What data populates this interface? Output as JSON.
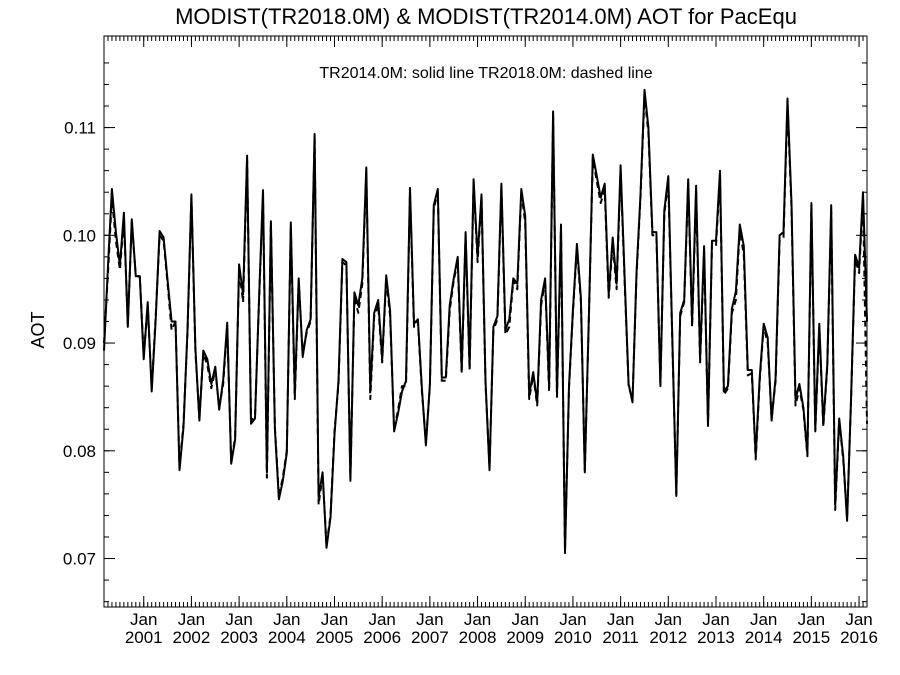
{
  "chart_data": {
    "type": "line",
    "title": "MODIST(TR2018.0M) & MODIST(TR2014.0M)  AOT for PacEqu",
    "annotation": "TR2014.0M: solid line   TR2018.0M: dashed line",
    "ylabel": "AOT",
    "xlabel": "",
    "ylim": [
      0.0655,
      0.1185
    ],
    "xlim": [
      "2000-03",
      "2016-03"
    ],
    "y_ticks": [
      {
        "value": 0.07,
        "label": "0.07"
      },
      {
        "value": 0.08,
        "label": "0.08"
      },
      {
        "value": 0.09,
        "label": "0.09"
      },
      {
        "value": 0.1,
        "label": "0.10"
      },
      {
        "value": 0.11,
        "label": "0.11"
      }
    ],
    "x_ticks": [
      {
        "value": "2001-01",
        "month": "Jan",
        "year": "2001"
      },
      {
        "value": "2002-01",
        "month": "Jan",
        "year": "2002"
      },
      {
        "value": "2003-01",
        "month": "Jan",
        "year": "2003"
      },
      {
        "value": "2004-01",
        "month": "Jan",
        "year": "2004"
      },
      {
        "value": "2005-01",
        "month": "Jan",
        "year": "2005"
      },
      {
        "value": "2006-01",
        "month": "Jan",
        "year": "2006"
      },
      {
        "value": "2007-01",
        "month": "Jan",
        "year": "2007"
      },
      {
        "value": "2008-01",
        "month": "Jan",
        "year": "2008"
      },
      {
        "value": "2009-01",
        "month": "Jan",
        "year": "2009"
      },
      {
        "value": "2010-01",
        "month": "Jan",
        "year": "2010"
      },
      {
        "value": "2011-01",
        "month": "Jan",
        "year": "2011"
      },
      {
        "value": "2012-01",
        "month": "Jan",
        "year": "2012"
      },
      {
        "value": "2013-01",
        "month": "Jan",
        "year": "2013"
      },
      {
        "value": "2014-01",
        "month": "Jan",
        "year": "2014"
      },
      {
        "value": "2015-01",
        "month": "Jan",
        "year": "2015"
      },
      {
        "value": "2016-01",
        "month": "Jan",
        "year": "2016"
      }
    ],
    "grid": false,
    "series": [
      {
        "name": "TR2014.0M",
        "style": "solid",
        "color": "#000000",
        "x": [
          "2000-03",
          "2000-04",
          "2000-05",
          "2000-06",
          "2000-07",
          "2000-08",
          "2000-09",
          "2000-10",
          "2000-11",
          "2000-12",
          "2001-01",
          "2001-02",
          "2001-03",
          "2001-04",
          "2001-05",
          "2001-06",
          "2001-07",
          "2001-08",
          "2001-09",
          "2001-10",
          "2001-11",
          "2001-12",
          "2002-01",
          "2002-02",
          "2002-03",
          "2002-04",
          "2002-05",
          "2002-06",
          "2002-07",
          "2002-08",
          "2002-09",
          "2002-10",
          "2002-11",
          "2002-12",
          "2003-01",
          "2003-02",
          "2003-03",
          "2003-04",
          "2003-05",
          "2003-06",
          "2003-07",
          "2003-08",
          "2003-09",
          "2003-10",
          "2003-11",
          "2003-12",
          "2004-01",
          "2004-02",
          "2004-03",
          "2004-04",
          "2004-05",
          "2004-06",
          "2004-07",
          "2004-08",
          "2004-09",
          "2004-10",
          "2004-11",
          "2004-12",
          "2005-01",
          "2005-02",
          "2005-03",
          "2005-04",
          "2005-05",
          "2005-06",
          "2005-07",
          "2005-08",
          "2005-09",
          "2005-10",
          "2005-11",
          "2005-12",
          "2006-01",
          "2006-02",
          "2006-03",
          "2006-04",
          "2006-05",
          "2006-06",
          "2006-07",
          "2006-08",
          "2006-09",
          "2006-10",
          "2006-11",
          "2006-12",
          "2007-01",
          "2007-02",
          "2007-03",
          "2007-04",
          "2007-05",
          "2007-06",
          "2007-07",
          "2007-08",
          "2007-09",
          "2007-10",
          "2007-11",
          "2007-12",
          "2008-01",
          "2008-02",
          "2008-03",
          "2008-04",
          "2008-05",
          "2008-06",
          "2008-07",
          "2008-08",
          "2008-09",
          "2008-10",
          "2008-11",
          "2008-12",
          "2009-01",
          "2009-02",
          "2009-03",
          "2009-04",
          "2009-05",
          "2009-06",
          "2009-07",
          "2009-08",
          "2009-09",
          "2009-10",
          "2009-11",
          "2009-12",
          "2010-01",
          "2010-02",
          "2010-03",
          "2010-04",
          "2010-05",
          "2010-06",
          "2010-07",
          "2010-08",
          "2010-09",
          "2010-10",
          "2010-11",
          "2010-12",
          "2011-01",
          "2011-02",
          "2011-03",
          "2011-04",
          "2011-05",
          "2011-06",
          "2011-07",
          "2011-08",
          "2011-09",
          "2011-10",
          "2011-11",
          "2011-12",
          "2012-01",
          "2012-02",
          "2012-03",
          "2012-04",
          "2012-05",
          "2012-06",
          "2012-07",
          "2012-08",
          "2012-09",
          "2012-10",
          "2012-11",
          "2012-12",
          "2013-01",
          "2013-02",
          "2013-03",
          "2013-04",
          "2013-05",
          "2013-06",
          "2013-07",
          "2013-08",
          "2013-09",
          "2013-10",
          "2013-11",
          "2013-12",
          "2014-01",
          "2014-02",
          "2014-03",
          "2014-04",
          "2014-05",
          "2014-06",
          "2014-07",
          "2014-08",
          "2014-09",
          "2014-10",
          "2014-11",
          "2014-12",
          "2015-01",
          "2015-02",
          "2015-03",
          "2015-04",
          "2015-05",
          "2015-06",
          "2015-07",
          "2015-08",
          "2015-09",
          "2015-10",
          "2015-11",
          "2015-12",
          "2016-01",
          "2016-02",
          "2016-03"
        ],
        "values": [
          0.0893,
          0.0972,
          0.1043,
          0.1003,
          0.0972,
          0.1021,
          0.0915,
          0.1015,
          0.0962,
          0.0962,
          0.0885,
          0.0938,
          0.0855,
          0.0922,
          0.1004,
          0.0998,
          0.0958,
          0.092,
          0.092,
          0.0782,
          0.0822,
          0.0912,
          0.1038,
          0.0895,
          0.0828,
          0.0893,
          0.0885,
          0.0862,
          0.0878,
          0.0838,
          0.0866,
          0.0919,
          0.0788,
          0.081,
          0.0973,
          0.0945,
          0.1074,
          0.0825,
          0.083,
          0.094,
          0.1042,
          0.078,
          0.1013,
          0.082,
          0.0755,
          0.0772,
          0.0798,
          0.1012,
          0.0852,
          0.096,
          0.0887,
          0.0912,
          0.0922,
          0.1094,
          0.0757,
          0.078,
          0.071,
          0.0738,
          0.0815,
          0.0865,
          0.0978,
          0.0975,
          0.0772,
          0.0947,
          0.0935,
          0.096,
          0.1063,
          0.0855,
          0.0928,
          0.094,
          0.0885,
          0.0963,
          0.093,
          0.0818,
          0.0835,
          0.0855,
          0.0865,
          0.1044,
          0.0918,
          0.0922,
          0.0858,
          0.0805,
          0.0862,
          0.1028,
          0.1043,
          0.0868,
          0.0868,
          0.0935,
          0.096,
          0.098,
          0.0875,
          0.1003,
          0.0878,
          0.1052,
          0.098,
          0.1038,
          0.0865,
          0.0782,
          0.0915,
          0.0925,
          0.1048,
          0.0912,
          0.0922,
          0.096,
          0.0955,
          0.1043,
          0.1018,
          0.0852,
          0.0873,
          0.0845,
          0.094,
          0.096,
          0.086,
          0.1115,
          0.0852,
          0.101,
          0.0705,
          0.086,
          0.093,
          0.0992,
          0.0942,
          0.078,
          0.0922,
          0.1075,
          0.1055,
          0.1035,
          0.1048,
          0.0945,
          0.0998,
          0.0955,
          0.1065,
          0.0962,
          0.0862,
          0.0845,
          0.0965,
          0.1038,
          0.1135,
          0.11,
          0.1003,
          0.1003,
          0.086,
          0.1023,
          0.1055,
          0.0905,
          0.0758,
          0.0928,
          0.094,
          0.1052,
          0.0918,
          0.1046,
          0.0885,
          0.099,
          0.0823,
          0.0995,
          0.0995,
          0.106,
          0.0855,
          0.086,
          0.0932,
          0.0948,
          0.101,
          0.099,
          0.0875,
          0.0875,
          0.0795,
          0.0868,
          0.0918,
          0.0905,
          0.0828,
          0.0868,
          0.1,
          0.1003,
          0.1127,
          0.103,
          0.0848,
          0.0862,
          0.084,
          0.0797,
          0.103,
          0.082,
          0.0918,
          0.0825,
          0.088,
          0.1028,
          0.075,
          0.083,
          0.0795,
          0.0735,
          0.085,
          0.0982,
          0.097,
          0.104,
          0.092
        ]
      },
      {
        "name": "TR2018.0M",
        "style": "dashed",
        "color": "#000000",
        "x": [
          "2000-03",
          "2000-04",
          "2000-05",
          "2000-06",
          "2000-07",
          "2000-08",
          "2000-09",
          "2000-10",
          "2000-11",
          "2000-12",
          "2001-01",
          "2001-02",
          "2001-03",
          "2001-04",
          "2001-05",
          "2001-06",
          "2001-07",
          "2001-08",
          "2001-09",
          "2001-10",
          "2001-11",
          "2001-12",
          "2002-01",
          "2002-02",
          "2002-03",
          "2002-04",
          "2002-05",
          "2002-06",
          "2002-07",
          "2002-08",
          "2002-09",
          "2002-10",
          "2002-11",
          "2002-12",
          "2003-01",
          "2003-02",
          "2003-03",
          "2003-04",
          "2003-05",
          "2003-06",
          "2003-07",
          "2003-08",
          "2003-09",
          "2003-10",
          "2003-11",
          "2003-12",
          "2004-01",
          "2004-02",
          "2004-03",
          "2004-04",
          "2004-05",
          "2004-06",
          "2004-07",
          "2004-08",
          "2004-09",
          "2004-10",
          "2004-11",
          "2004-12",
          "2005-01",
          "2005-02",
          "2005-03",
          "2005-04",
          "2005-05",
          "2005-06",
          "2005-07",
          "2005-08",
          "2005-09",
          "2005-10",
          "2005-11",
          "2005-12",
          "2006-01",
          "2006-02",
          "2006-03",
          "2006-04",
          "2006-05",
          "2006-06",
          "2006-07",
          "2006-08",
          "2006-09",
          "2006-10",
          "2006-11",
          "2006-12",
          "2007-01",
          "2007-02",
          "2007-03",
          "2007-04",
          "2007-05",
          "2007-06",
          "2007-07",
          "2007-08",
          "2007-09",
          "2007-10",
          "2007-11",
          "2007-12",
          "2008-01",
          "2008-02",
          "2008-03",
          "2008-04",
          "2008-05",
          "2008-06",
          "2008-07",
          "2008-08",
          "2008-09",
          "2008-10",
          "2008-11",
          "2008-12",
          "2009-01",
          "2009-02",
          "2009-03",
          "2009-04",
          "2009-05",
          "2009-06",
          "2009-07",
          "2009-08",
          "2009-09",
          "2009-10",
          "2009-11",
          "2009-12",
          "2010-01",
          "2010-02",
          "2010-03",
          "2010-04",
          "2010-05",
          "2010-06",
          "2010-07",
          "2010-08",
          "2010-09",
          "2010-10",
          "2010-11",
          "2010-12",
          "2011-01",
          "2011-02",
          "2011-03",
          "2011-04",
          "2011-05",
          "2011-06",
          "2011-07",
          "2011-08",
          "2011-09",
          "2011-10",
          "2011-11",
          "2011-12",
          "2012-01",
          "2012-02",
          "2012-03",
          "2012-04",
          "2012-05",
          "2012-06",
          "2012-07",
          "2012-08",
          "2012-09",
          "2012-10",
          "2012-11",
          "2012-12",
          "2013-01",
          "2013-02",
          "2013-03",
          "2013-04",
          "2013-05",
          "2013-06",
          "2013-07",
          "2013-08",
          "2013-09",
          "2013-10",
          "2013-11",
          "2013-12",
          "2014-01",
          "2014-02",
          "2014-03",
          "2014-04",
          "2014-05",
          "2014-06",
          "2014-07",
          "2014-08",
          "2014-09",
          "2014-10",
          "2014-11",
          "2014-12",
          "2015-01",
          "2015-02",
          "2015-03",
          "2015-04",
          "2015-05",
          "2015-06",
          "2015-07",
          "2015-08",
          "2015-09",
          "2015-10",
          "2015-11",
          "2015-12",
          "2016-01",
          "2016-02",
          "2016-03"
        ],
        "values": [
          0.09,
          0.0965,
          0.1035,
          0.0995,
          0.0968,
          0.1015,
          0.0918,
          0.1012,
          0.0962,
          0.0962,
          0.0888,
          0.0935,
          0.0858,
          0.0925,
          0.1,
          0.0995,
          0.0955,
          0.0912,
          0.092,
          0.0785,
          0.0825,
          0.091,
          0.1035,
          0.0892,
          0.083,
          0.089,
          0.088,
          0.0858,
          0.0875,
          0.084,
          0.0862,
          0.0915,
          0.079,
          0.0812,
          0.0968,
          0.0938,
          0.107,
          0.0828,
          0.0832,
          0.0938,
          0.1038,
          0.0775,
          0.101,
          0.0822,
          0.0758,
          0.0775,
          0.08,
          0.1008,
          0.0848,
          0.0958,
          0.089,
          0.091,
          0.092,
          0.109,
          0.075,
          0.0778,
          0.0712,
          0.074,
          0.0818,
          0.0862,
          0.0975,
          0.0972,
          0.0775,
          0.0942,
          0.0928,
          0.0955,
          0.1058,
          0.0848,
          0.0925,
          0.0935,
          0.0882,
          0.096,
          0.0925,
          0.082,
          0.0838,
          0.086,
          0.086,
          0.104,
          0.0915,
          0.092,
          0.0855,
          0.0808,
          0.086,
          0.1025,
          0.104,
          0.0865,
          0.0865,
          0.093,
          0.0958,
          0.0975,
          0.0872,
          0.1,
          0.0875,
          0.1048,
          0.0975,
          0.1035,
          0.0862,
          0.0785,
          0.0912,
          0.0922,
          0.1045,
          0.0908,
          0.0915,
          0.0958,
          0.095,
          0.104,
          0.1012,
          0.0848,
          0.087,
          0.0842,
          0.0935,
          0.0958,
          0.0855,
          0.111,
          0.085,
          0.1005,
          0.0708,
          0.0858,
          0.0928,
          0.0988,
          0.0938,
          0.0782,
          0.092,
          0.1072,
          0.105,
          0.103,
          0.1042,
          0.0942,
          0.0992,
          0.095,
          0.106,
          0.0958,
          0.086,
          0.0848,
          0.0962,
          0.1035,
          0.113,
          0.1095,
          0.1,
          0.1,
          0.0862,
          0.102,
          0.105,
          0.0902,
          0.076,
          0.0925,
          0.0938,
          0.1048,
          0.0915,
          0.104,
          0.0882,
          0.0985,
          0.0825,
          0.0992,
          0.099,
          0.1055,
          0.0852,
          0.0858,
          0.0928,
          0.094,
          0.1005,
          0.0982,
          0.087,
          0.0872,
          0.0792,
          0.0865,
          0.0915,
          0.09,
          0.083,
          0.0865,
          0.0995,
          0.0998,
          0.1122,
          0.1025,
          0.0842,
          0.0858,
          0.0838,
          0.0795,
          0.1025,
          0.0818,
          0.0915,
          0.0822,
          0.0878,
          0.1022,
          0.0745,
          0.0828,
          0.0792,
          0.0738,
          0.0848,
          0.0978,
          0.0965,
          0.1035,
          0.0825
        ]
      }
    ]
  }
}
